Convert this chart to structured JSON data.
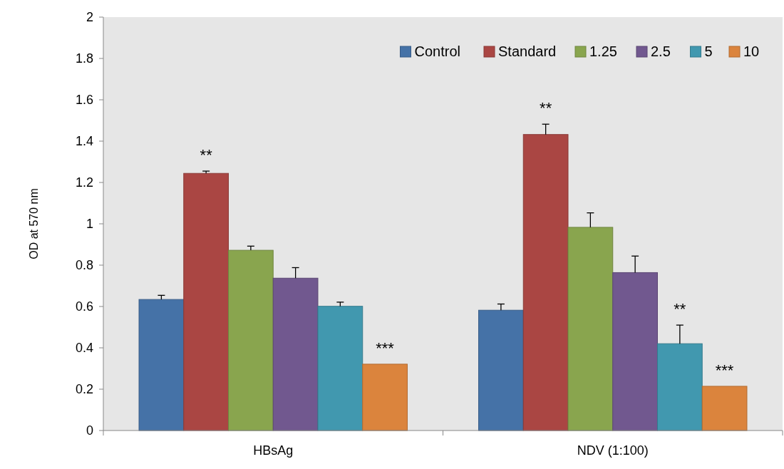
{
  "chart_data": {
    "type": "bar",
    "ylabel": "OD at 570 nm",
    "categories": [
      "HBsAg",
      "NDV (1:100)"
    ],
    "series": [
      {
        "name": "Control",
        "color": "#4572a7",
        "values": [
          0.634,
          0.582
        ],
        "errors": [
          [
            0.634,
            0.654
          ],
          [
            0.582,
            0.612
          ]
        ]
      },
      {
        "name": "Standard",
        "color": "#aa4643",
        "values": [
          1.244,
          1.432
        ],
        "errors": [
          [
            1.244,
            1.255
          ],
          [
            1.432,
            1.482
          ]
        ]
      },
      {
        "name": "1.25",
        "color": "#89a54e",
        "values": [
          0.872,
          0.983
        ],
        "errors": [
          [
            0.872,
            0.892
          ],
          [
            0.983,
            1.053
          ]
        ]
      },
      {
        "name": "2.5",
        "color": "#71588f",
        "values": [
          0.737,
          0.764
        ],
        "errors": [
          [
            0.737,
            0.788
          ],
          [
            0.764,
            0.844
          ]
        ]
      },
      {
        "name": "5",
        "color": "#4198af",
        "values": [
          0.601,
          0.42
        ],
        "errors": [
          [
            0.601,
            0.621
          ],
          [
            0.42,
            0.51
          ]
        ]
      },
      {
        "name": "10",
        "color": "#db843d",
        "values": [
          0.321,
          0.214
        ]
      }
    ],
    "ylim": [
      0,
      2
    ],
    "yticks": [
      0,
      0.2,
      0.4,
      0.6,
      0.8,
      1,
      1.2,
      1.4,
      1.6,
      1.8,
      2
    ],
    "legend": "top right",
    "grid": false,
    "annotations": [
      "**",
      "***",
      "**",
      "**",
      "***"
    ]
  }
}
